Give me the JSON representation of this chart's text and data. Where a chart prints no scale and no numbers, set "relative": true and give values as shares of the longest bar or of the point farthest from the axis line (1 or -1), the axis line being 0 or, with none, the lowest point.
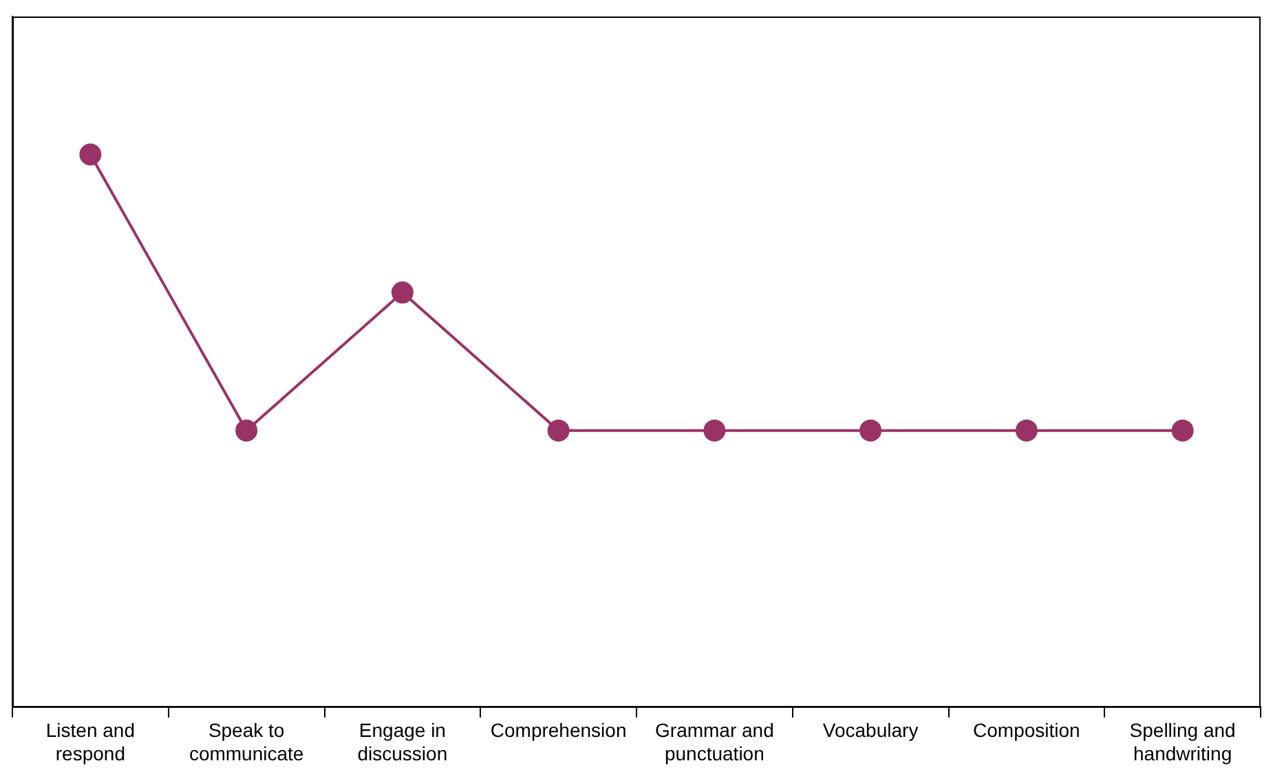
{
  "chart_data": {
    "type": "line",
    "relative": true,
    "categories": [
      "Listen and respond",
      "Speak to communicate",
      "Engage in discussion",
      "Comprehension",
      "Grammar and punctuation",
      "Vocabulary",
      "Composition",
      "Spelling and handwriting"
    ],
    "series": [
      {
        "color": "#993366",
        "values": [
          1,
          0.5,
          0.75,
          0.5,
          0.5,
          0.5,
          0.5,
          0.5
        ]
      }
    ],
    "marker": "circle",
    "line_style": "solid",
    "grid": false,
    "legend": false
  }
}
